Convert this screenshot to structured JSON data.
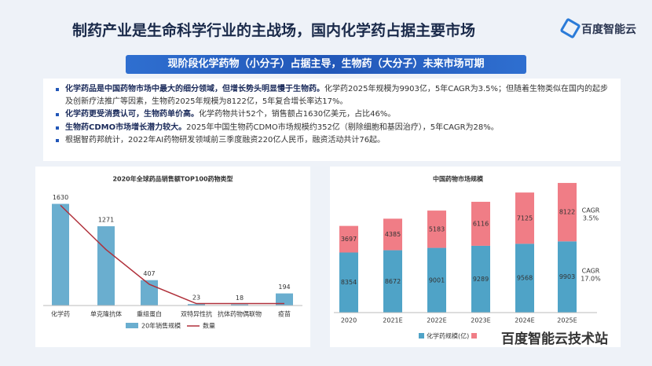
{
  "header": {
    "title": "制药产业是生命科学行业的主战场，国内化学药占据主要市场",
    "logo": "百度智能云"
  },
  "banner": "现阶段化学药物（小分子）占据主导，生物药（大分子）未来市场可期",
  "bullets": [
    {
      "bold": "化学药品是中国药物市场中最大的细分领域，但增长势头明显慢于生物药。",
      "text": "化学药2025年规模为9903亿，5年CAGR为3.5%；但随着生物类似在国内的起步及创新疗法推广等因素，生物药2025年规模为8122亿，5年复合增长率达17%。"
    },
    {
      "bold": "化学药更受消费认可，生物药单价高。",
      "text": "化学药物共计52个，销售额占1630亿美元，占比46%。"
    },
    {
      "bold": "生物药CDMO市场增长潜力较大。",
      "text": "2025年中国生物药CDMO市场规模约352亿（剔除细胞和基因治疗），5年CAGR为28%。"
    },
    {
      "text": "根据智药邦统计，2022年AI药物研发领域前三季度融资220亿人民币，融资活动共计76起。"
    }
  ],
  "watermark": "百度智能云技术站",
  "chart_data": [
    {
      "type": "bar_line",
      "title": "2020年全球药品销售额TOP100药物类型",
      "categories": [
        "化学药",
        "单克隆抗体",
        "重组蛋白",
        "双特异性抗",
        "抗体药物偶联物",
        "疫苗"
      ],
      "series": [
        {
          "name": "20年销售规模",
          "color": "#6aaecf",
          "values": [
            1630,
            1271,
            407,
            23,
            18,
            194
          ]
        },
        {
          "name": "数量",
          "color": "#b0303a",
          "values": [
            52,
            29,
            11,
            1,
            1,
            1
          ],
          "axis": "y2"
        }
      ],
      "ylim": [
        0,
        1700
      ],
      "y2lim": [
        0,
        55
      ]
    },
    {
      "type": "stacked_bar",
      "title": "中国药物市场规模",
      "categories": [
        "2020",
        "2021E",
        "2022E",
        "2023E",
        "2024E",
        "2025E"
      ],
      "series": [
        {
          "name": "化学药规模(亿)",
          "color": "#4fa3c7",
          "values": [
            8354,
            8672,
            9001,
            9289,
            9568,
            9903
          ]
        },
        {
          "color": "#f07d86",
          "values": [
            3697,
            4385,
            5183,
            6116,
            7125,
            8122
          ]
        }
      ],
      "ylim": [
        0,
        19000
      ],
      "annotations": [
        {
          "lines": [
            "CAGR",
            "3.5%"
          ],
          "color": "#d9363e"
        },
        {
          "lines": [
            "CAGR",
            "17.0%"
          ],
          "color": "#2b6fa8"
        }
      ]
    }
  ]
}
